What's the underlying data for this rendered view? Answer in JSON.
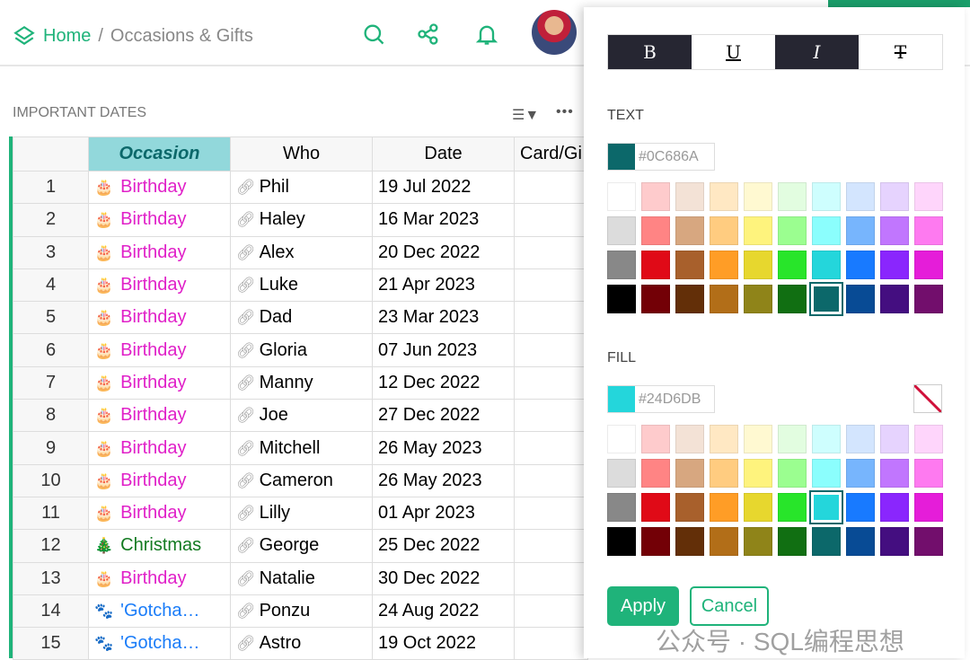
{
  "breadcrumb": {
    "home": "Home",
    "separator": "/",
    "page": "Occasions & Gifts"
  },
  "section_title": "IMPORTANT DATES",
  "table": {
    "headers": [
      "",
      "Occasion",
      "Who",
      "Date",
      "Card/Gi"
    ],
    "rows": [
      {
        "n": "1",
        "icon": "🎂",
        "occasion": "Birthday",
        "who": "Phil",
        "date": "19 Jul 2022",
        "color": "#e020c8"
      },
      {
        "n": "2",
        "icon": "🎂",
        "occasion": "Birthday",
        "who": "Haley",
        "date": "16 Mar 2023",
        "color": "#e020c8"
      },
      {
        "n": "3",
        "icon": "🎂",
        "occasion": "Birthday",
        "who": "Alex",
        "date": "20 Dec 2022",
        "color": "#e020c8"
      },
      {
        "n": "4",
        "icon": "🎂",
        "occasion": "Birthday",
        "who": "Luke",
        "date": "21 Apr 2023",
        "color": "#e020c8"
      },
      {
        "n": "5",
        "icon": "🎂",
        "occasion": "Birthday",
        "who": "Dad",
        "date": "23 Mar 2023",
        "color": "#e020c8"
      },
      {
        "n": "6",
        "icon": "🎂",
        "occasion": "Birthday",
        "who": "Gloria",
        "date": "07 Jun 2023",
        "color": "#e020c8"
      },
      {
        "n": "7",
        "icon": "🎂",
        "occasion": "Birthday",
        "who": "Manny",
        "date": "12 Dec 2022",
        "color": "#e020c8"
      },
      {
        "n": "8",
        "icon": "🎂",
        "occasion": "Birthday",
        "who": "Joe",
        "date": "27 Dec 2022",
        "color": "#e020c8"
      },
      {
        "n": "9",
        "icon": "🎂",
        "occasion": "Birthday",
        "who": "Mitchell",
        "date": "26 May 2023",
        "color": "#e020c8"
      },
      {
        "n": "10",
        "icon": "🎂",
        "occasion": "Birthday",
        "who": "Cameron",
        "date": "26 May 2023",
        "color": "#e020c8"
      },
      {
        "n": "11",
        "icon": "🎂",
        "occasion": "Birthday",
        "who": "Lilly",
        "date": "01 Apr 2023",
        "color": "#e020c8"
      },
      {
        "n": "12",
        "icon": "🎄",
        "occasion": "Christmas",
        "who": "George",
        "date": "25 Dec 2022",
        "color": "#127a20"
      },
      {
        "n": "13",
        "icon": "🎂",
        "occasion": "Birthday",
        "who": "Natalie",
        "date": "30 Dec 2022",
        "color": "#e020c8"
      },
      {
        "n": "14",
        "icon": "🐾",
        "occasion": "'Gotcha…",
        "who": "Ponzu",
        "date": "24 Aug 2022",
        "color": "#1a7cf8"
      },
      {
        "n": "15",
        "icon": "🐾",
        "occasion": "'Gotcha…",
        "who": "Astro",
        "date": "19 Oct 2022",
        "color": "#1a7cf8"
      }
    ]
  },
  "style_panel": {
    "format_buttons": [
      {
        "label": "B",
        "active": true
      },
      {
        "label": "U",
        "active": false
      },
      {
        "label": "I",
        "active": true
      },
      {
        "label": "T",
        "active": false
      }
    ],
    "text_label": "TEXT",
    "text_color": "#0C686A",
    "fill_label": "FILL",
    "fill_color": "#24D6DB",
    "palette": [
      "#FFFFFF",
      "#FECBCC",
      "#F3E2D6",
      "#FFE8C3",
      "#FFF9D1",
      "#E2FDE0",
      "#CEFEFE",
      "#D3E5FE",
      "#E6D3FE",
      "#FED5FB",
      "#DCDCDC",
      "#FF8484",
      "#D7A780",
      "#FFCC80",
      "#FEF37D",
      "#9BFE90",
      "#8BFEFD",
      "#77B5FD",
      "#C176FE",
      "#FE7AF0",
      "#888888",
      "#E00A17",
      "#A8602C",
      "#FF9D26",
      "#E7D72E",
      "#28E52A",
      "#24D6DB",
      "#187AFF",
      "#8A26FD",
      "#E51DD9",
      "#000000",
      "#730006",
      "#632F08",
      "#B26E18",
      "#8F8419",
      "#116F12",
      "#0C686A",
      "#084B95",
      "#440E80",
      "#720E6C"
    ],
    "apply": "Apply",
    "cancel": "Cancel"
  },
  "watermark": "公众号 · SQL编程思想"
}
